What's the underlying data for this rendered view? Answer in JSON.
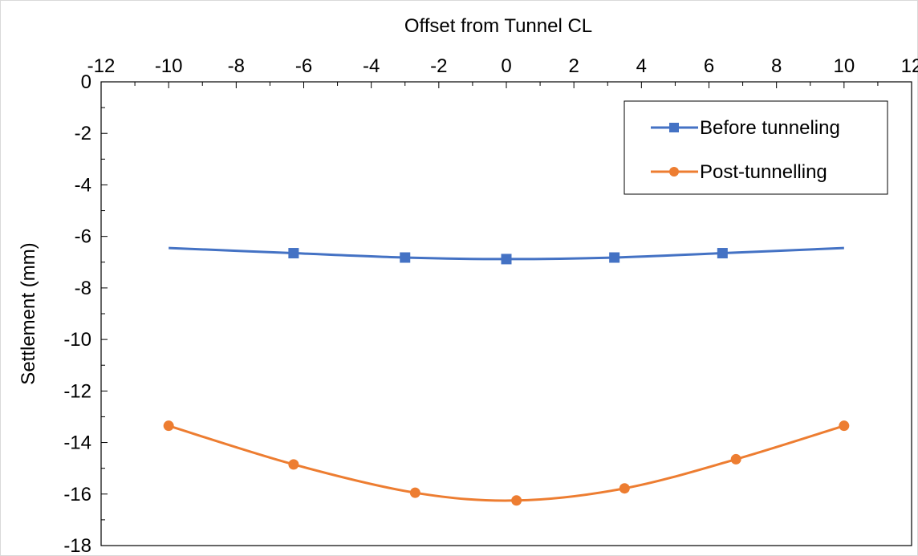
{
  "chart_data": {
    "type": "line",
    "title": "",
    "xlabel": "Offset from Tunnel CL",
    "ylabel": "Settlement (mm)",
    "xlim": [
      -12,
      12
    ],
    "ylim": [
      -18,
      0
    ],
    "x_ticks": [
      -12,
      -10,
      -8,
      -6,
      -4,
      -2,
      0,
      2,
      4,
      6,
      8,
      10,
      12
    ],
    "y_ticks": [
      0,
      -2,
      -4,
      -6,
      -8,
      -10,
      -12,
      -14,
      -16,
      -18
    ],
    "x_axis_position": "top",
    "grid": false,
    "legend_position": "top-right",
    "smooth": true,
    "series": [
      {
        "name": "Before tunneling",
        "color": "#4472c4",
        "marker": "square",
        "points": [
          {
            "x": -10,
            "y": -6.45,
            "marker": false
          },
          {
            "x": -6.3,
            "y": -6.65,
            "marker": true
          },
          {
            "x": -3.0,
            "y": -6.82,
            "marker": true
          },
          {
            "x": 0.0,
            "y": -6.88,
            "marker": true
          },
          {
            "x": 3.2,
            "y": -6.82,
            "marker": true
          },
          {
            "x": 6.4,
            "y": -6.65,
            "marker": true
          },
          {
            "x": 10,
            "y": -6.45,
            "marker": false
          }
        ]
      },
      {
        "name": "Post-tunnelling",
        "color": "#ed7d31",
        "marker": "circle",
        "points": [
          {
            "x": -10,
            "y": -13.35,
            "marker": true
          },
          {
            "x": -6.3,
            "y": -14.85,
            "marker": true
          },
          {
            "x": -2.7,
            "y": -15.95,
            "marker": true
          },
          {
            "x": 0.3,
            "y": -16.25,
            "marker": true
          },
          {
            "x": 3.5,
            "y": -15.78,
            "marker": true
          },
          {
            "x": 6.8,
            "y": -14.65,
            "marker": true
          },
          {
            "x": 10,
            "y": -13.35,
            "marker": true
          }
        ]
      }
    ]
  }
}
